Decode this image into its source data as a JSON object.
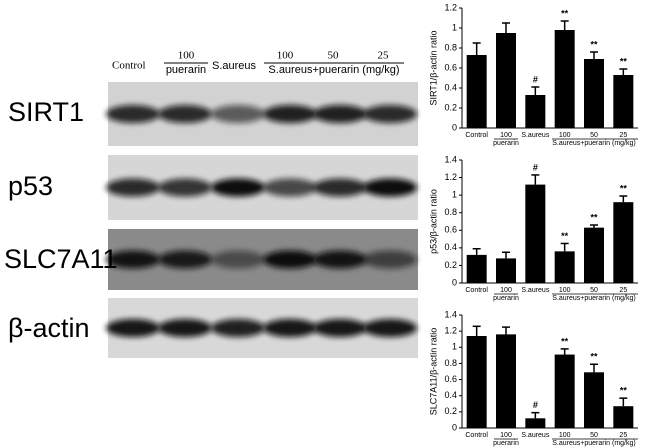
{
  "blot": {
    "header": [
      "Control",
      "100",
      "puerarin",
      "S.aureus",
      "100",
      "50",
      "25",
      "S.aureus+puerarin (mg/kg)"
    ],
    "rows": [
      "SIRT1",
      "p53",
      "SLC7A11",
      "β-actin"
    ]
  },
  "chart_data": [
    {
      "type": "bar",
      "y_label": "SIRT1/β-actin ratio",
      "categories": [
        "Control",
        "100",
        "S.aureus",
        "100",
        "50",
        "25"
      ],
      "sublabels": [
        "puerarin",
        "S.aureus+puerarin (mg/kg)"
      ],
      "values": [
        0.73,
        0.95,
        0.33,
        0.98,
        0.69,
        0.53
      ],
      "errors": [
        0.12,
        0.1,
        0.08,
        0.09,
        0.07,
        0.06
      ],
      "annotations": [
        null,
        null,
        "#",
        "**",
        "**",
        "**"
      ],
      "color": "#000000",
      "ylim": [
        0,
        1.2
      ],
      "yticks": [
        0,
        0.2,
        0.4,
        0.6,
        0.8,
        1,
        1.2
      ]
    },
    {
      "type": "bar",
      "y_label": "p53/β-actin ratio",
      "categories": [
        "Control",
        "100",
        "S.aureus",
        "100",
        "50",
        "25"
      ],
      "sublabels": [
        "puerarin",
        "S.aureus+puerarin (mg/kg)"
      ],
      "values": [
        0.32,
        0.28,
        1.12,
        0.36,
        0.63,
        0.92
      ],
      "errors": [
        0.07,
        0.07,
        0.11,
        0.09,
        0.03,
        0.07
      ],
      "annotations": [
        null,
        null,
        "#",
        "**",
        "**",
        "**"
      ],
      "color": "#000000",
      "ylim": [
        0,
        1.4
      ],
      "yticks": [
        0,
        0.2,
        0.4,
        0.6,
        0.8,
        1,
        1.2,
        1.4
      ]
    },
    {
      "type": "bar",
      "y_label": "SLC7A11/β-actin ratio",
      "categories": [
        "Control",
        "100",
        "S.aureus",
        "100",
        "50",
        "25"
      ],
      "sublabels": [
        "puerarin",
        "S.aureus+puerarin (mg/kg)"
      ],
      "values": [
        1.14,
        1.16,
        0.12,
        0.91,
        0.69,
        0.27
      ],
      "errors": [
        0.12,
        0.09,
        0.07,
        0.07,
        0.1,
        0.1
      ],
      "annotations": [
        null,
        null,
        "#",
        "**",
        "**",
        "**"
      ],
      "color": "#000000",
      "ylim": [
        0,
        1.4
      ],
      "yticks": [
        0,
        0.2,
        0.4,
        0.6,
        0.8,
        1,
        1.2,
        1.4
      ]
    }
  ]
}
